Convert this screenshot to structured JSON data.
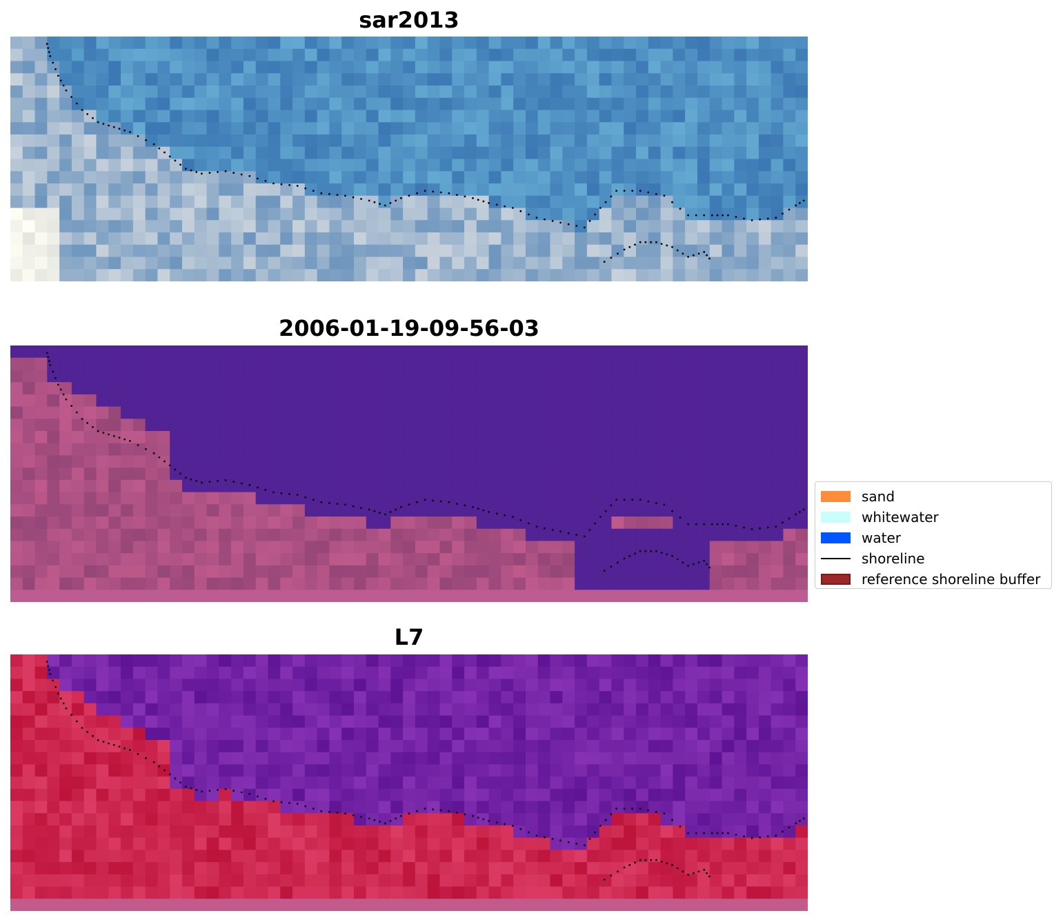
{
  "panels": [
    {
      "title": "sar2013",
      "palette": "sar"
    },
    {
      "title": "2006-01-19-09-56-03",
      "palette": "class"
    },
    {
      "title": "L7",
      "palette": "l7"
    }
  ],
  "legend": {
    "items": [
      {
        "label": "sand",
        "color": "#ff8c3a",
        "kind": "patch"
      },
      {
        "label": "whitewater",
        "color": "#c8fffd",
        "kind": "patch"
      },
      {
        "label": "water",
        "color": "#0055ff",
        "kind": "patch"
      },
      {
        "label": "shoreline",
        "color": "#000000",
        "kind": "line"
      },
      {
        "label": "reference shoreline buffer",
        "color": "#9a2a2a",
        "kind": "patch"
      }
    ]
  }
}
